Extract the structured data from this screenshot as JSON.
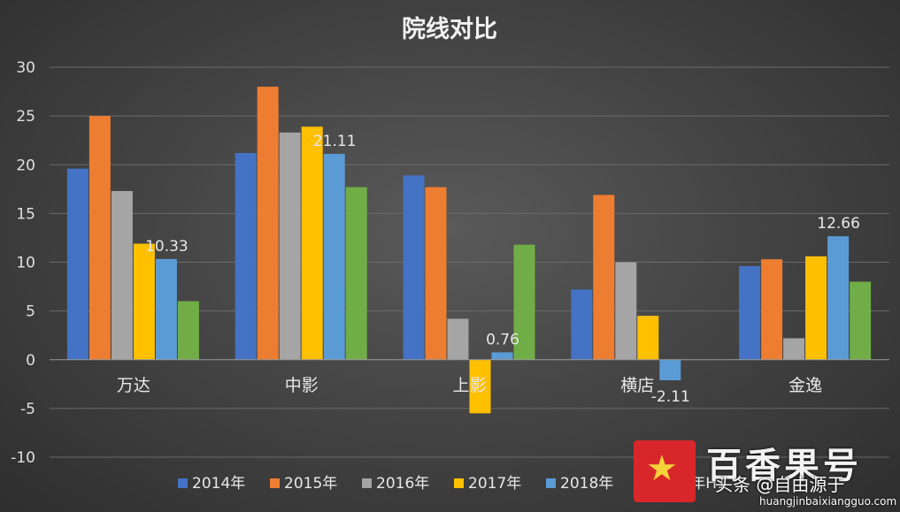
{
  "chart_data": {
    "type": "bar",
    "title": "院线对比",
    "categories": [
      "万达",
      "中影",
      "上影",
      "横店",
      "金逸"
    ],
    "series": [
      {
        "name": "2014年",
        "color": "#4472c4",
        "values": [
          19.6,
          21.2,
          18.9,
          7.2,
          9.6
        ]
      },
      {
        "name": "2015年",
        "color": "#ed7d31",
        "values": [
          25.0,
          28.0,
          17.7,
          16.9,
          10.3
        ]
      },
      {
        "name": "2016年",
        "color": "#a5a5a5",
        "values": [
          17.3,
          23.3,
          4.2,
          10.0,
          2.2
        ]
      },
      {
        "name": "2017年",
        "color": "#ffc000",
        "values": [
          11.9,
          23.9,
          -5.5,
          4.5,
          10.6
        ]
      },
      {
        "name": "2018年",
        "color": "#5b9bd5",
        "values": [
          10.33,
          21.11,
          0.76,
          -2.11,
          12.66
        ]
      },
      {
        "name": "2019年H1",
        "color": "#70ad47",
        "values": [
          6.0,
          17.7,
          11.8,
          null,
          8.0
        ]
      }
    ],
    "data_labels": [
      {
        "series": "2018年",
        "category": "万达",
        "text": "10.33"
      },
      {
        "series": "2018年",
        "category": "中影",
        "text": "21.11"
      },
      {
        "series": "2018年",
        "category": "上影",
        "text": "0.76"
      },
      {
        "series": "2018年",
        "category": "横店",
        "text": "-2.11"
      },
      {
        "series": "2018年",
        "category": "金逸",
        "text": "12.66"
      }
    ],
    "y_ticks": [
      "30",
      "25",
      "20",
      "15",
      "10",
      "5",
      "0",
      "-5",
      "-10"
    ],
    "ylim": [
      -10,
      30
    ],
    "grid": true,
    "legend": "bottom"
  },
  "watermark": {
    "brand": "百香果号",
    "handle": "头条 @自由源于",
    "site": "huangjinbaixiangguo.com"
  }
}
